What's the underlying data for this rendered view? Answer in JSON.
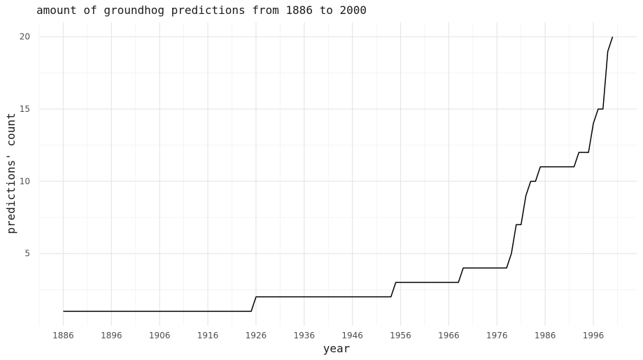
{
  "chart_data": {
    "type": "line",
    "title": "amount of groundhog predictions from 1886 to 2000",
    "xlabel": "year",
    "ylabel": "predictions' count",
    "xlim": [
      1881,
      2005
    ],
    "ylim": [
      0,
      21
    ],
    "x_ticks": [
      1886,
      1896,
      1906,
      1916,
      1926,
      1936,
      1946,
      1956,
      1966,
      1976,
      1986,
      1996
    ],
    "y_ticks": [
      5,
      10,
      15,
      20
    ],
    "grid": true,
    "series": [
      {
        "color": "#000000",
        "points": [
          [
            1886,
            1
          ],
          [
            1925,
            1
          ],
          [
            1926,
            2
          ],
          [
            1954,
            2
          ],
          [
            1955,
            3
          ],
          [
            1968,
            3
          ],
          [
            1969,
            4
          ],
          [
            1978,
            4
          ],
          [
            1979,
            5
          ],
          [
            1980,
            7
          ],
          [
            1981,
            7
          ],
          [
            1982,
            9
          ],
          [
            1983,
            10
          ],
          [
            1984,
            10
          ],
          [
            1985,
            11
          ],
          [
            1992,
            11
          ],
          [
            1993,
            12
          ],
          [
            1995,
            12
          ],
          [
            1996,
            14
          ],
          [
            1997,
            15
          ],
          [
            1998,
            15
          ],
          [
            1999,
            19
          ],
          [
            2000,
            20
          ]
        ]
      }
    ]
  }
}
